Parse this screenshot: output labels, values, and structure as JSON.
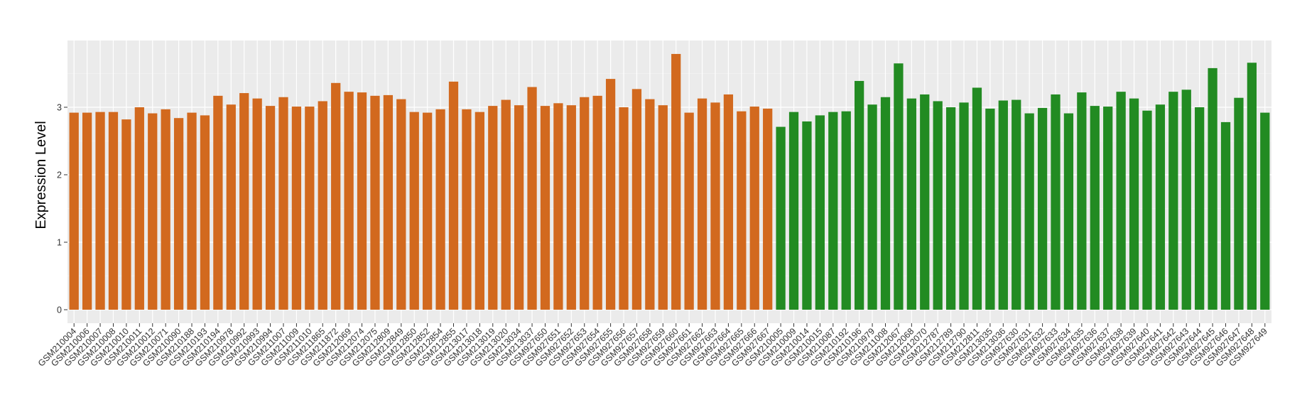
{
  "chart_data": {
    "type": "bar",
    "title": "",
    "xlabel": "",
    "ylabel": "Expression Level",
    "ylim": [
      0,
      4
    ],
    "yticks": [
      0,
      1,
      2,
      3
    ],
    "grid": true,
    "legend": "none",
    "panel_color": "#ebebeb",
    "group_colors": [
      "#d2691e",
      "#228b22"
    ],
    "categories": [
      "GSM210004",
      "GSM210006",
      "GSM210007",
      "GSM210008",
      "GSM210010",
      "GSM210011",
      "GSM210012",
      "GSM210071",
      "GSM210090",
      "GSM210188",
      "GSM210193",
      "GSM210194",
      "GSM210978",
      "GSM210992",
      "GSM210993",
      "GSM210994",
      "GSM211007",
      "GSM211009",
      "GSM211010",
      "GSM211865",
      "GSM211872",
      "GSM212069",
      "GSM212074",
      "GSM212075",
      "GSM212809",
      "GSM212849",
      "GSM212850",
      "GSM212852",
      "GSM212854",
      "GSM212855",
      "GSM213017",
      "GSM213018",
      "GSM213019",
      "GSM213020",
      "GSM213034",
      "GSM213037",
      "GSM927650",
      "GSM927651",
      "GSM927652",
      "GSM927653",
      "GSM927654",
      "GSM927655",
      "GSM927656",
      "GSM927657",
      "GSM927658",
      "GSM927659",
      "GSM927660",
      "GSM927661",
      "GSM927662",
      "GSM927663",
      "GSM927664",
      "GSM927665",
      "GSM927666",
      "GSM927667",
      "GSM210005",
      "GSM210009",
      "GSM210014",
      "GSM210015",
      "GSM210087",
      "GSM210192",
      "GSM210196",
      "GSM210979",
      "GSM211008",
      "GSM212067",
      "GSM212068",
      "GSM212070",
      "GSM212787",
      "GSM212789",
      "GSM212790",
      "GSM212811",
      "GSM213035",
      "GSM213036",
      "GSM927630",
      "GSM927631",
      "GSM927632",
      "GSM927633",
      "GSM927634",
      "GSM927635",
      "GSM927636",
      "GSM927637",
      "GSM927638",
      "GSM927639",
      "GSM927640",
      "GSM927641",
      "GSM927642",
      "GSM927643",
      "GSM927644",
      "GSM927645",
      "GSM927646",
      "GSM927647",
      "GSM927648",
      "GSM927649"
    ],
    "values": [
      2.92,
      2.92,
      2.93,
      2.93,
      2.82,
      3.0,
      2.91,
      2.97,
      2.84,
      2.92,
      2.88,
      3.17,
      3.04,
      3.21,
      3.13,
      3.02,
      3.15,
      3.01,
      3.01,
      3.09,
      3.36,
      3.23,
      3.22,
      3.17,
      3.18,
      3.12,
      2.93,
      2.92,
      2.97,
      3.38,
      2.97,
      2.93,
      3.02,
      3.11,
      3.03,
      3.3,
      3.02,
      3.06,
      3.03,
      3.15,
      3.17,
      3.42,
      3.0,
      3.27,
      3.12,
      3.03,
      3.79,
      2.92,
      3.13,
      3.07,
      3.19,
      2.94,
      3.01,
      2.98,
      2.71,
      2.93,
      2.79,
      2.88,
      2.93,
      2.94,
      3.39,
      3.04,
      3.15,
      3.65,
      3.13,
      3.19,
      3.09,
      3.0,
      3.07,
      3.29,
      2.98,
      3.1,
      3.11,
      2.91,
      2.99,
      3.19,
      2.91,
      3.22,
      3.02,
      3.01,
      3.23,
      3.13,
      2.95,
      3.04,
      3.23,
      3.26,
      3.0,
      3.58,
      2.78,
      3.14,
      3.66,
      2.92
    ],
    "groups": [
      0,
      0,
      0,
      0,
      0,
      0,
      0,
      0,
      0,
      0,
      0,
      0,
      0,
      0,
      0,
      0,
      0,
      0,
      0,
      0,
      0,
      0,
      0,
      0,
      0,
      0,
      0,
      0,
      0,
      0,
      0,
      0,
      0,
      0,
      0,
      0,
      0,
      0,
      0,
      0,
      0,
      0,
      0,
      0,
      0,
      0,
      0,
      0,
      0,
      0,
      0,
      0,
      0,
      0,
      1,
      1,
      1,
      1,
      1,
      1,
      1,
      1,
      1,
      1,
      1,
      1,
      1,
      1,
      1,
      1,
      1,
      1,
      1,
      1,
      1,
      1,
      1,
      1,
      1,
      1,
      1,
      1,
      1,
      1,
      1,
      1,
      1,
      1,
      1,
      1,
      1,
      1
    ]
  }
}
